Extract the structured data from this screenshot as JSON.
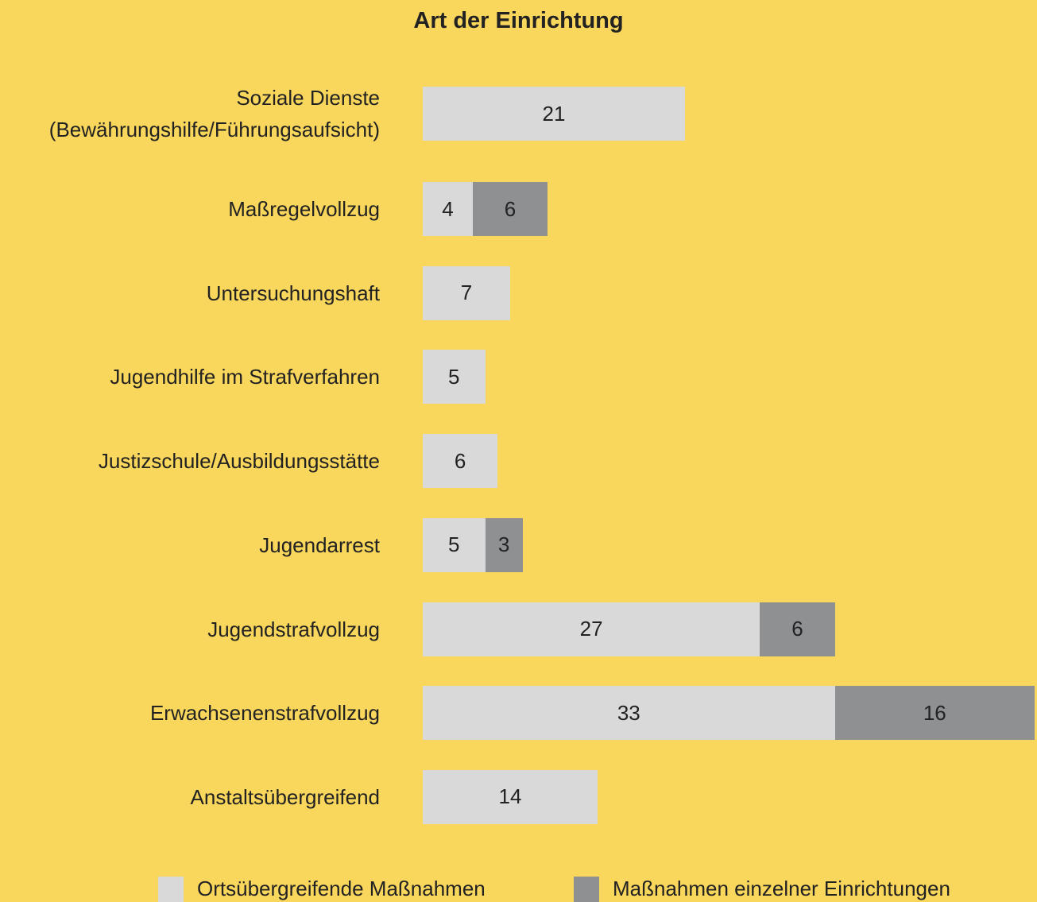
{
  "chart_data": {
    "type": "bar",
    "orientation": "horizontal",
    "stacked": true,
    "title": "Art der Einrichtung",
    "categories": [
      "Soziale Dienste\n(Bewährungshilfe/Führungsaufsicht)",
      "Maßregelvollzug",
      "Untersuchungshaft",
      "Jugendhilfe im Strafverfahren",
      "Justizschule/Ausbildungsstätte",
      "Jugendarrest",
      "Jugendstrafvollzug",
      "Erwachsenenstrafvollzug",
      "Anstaltsübergreifend"
    ],
    "series": [
      {
        "name": "Ortsübergreifende Maßnahmen",
        "color": "#d9d9d9",
        "values": [
          21,
          4,
          7,
          5,
          6,
          5,
          27,
          33,
          14
        ]
      },
      {
        "name": "Maßnahmen einzelner Einrichtungen",
        "color": "#8e9092",
        "values": [
          null,
          6,
          null,
          null,
          null,
          3,
          6,
          16,
          null
        ]
      }
    ],
    "legend": "bottom"
  }
}
